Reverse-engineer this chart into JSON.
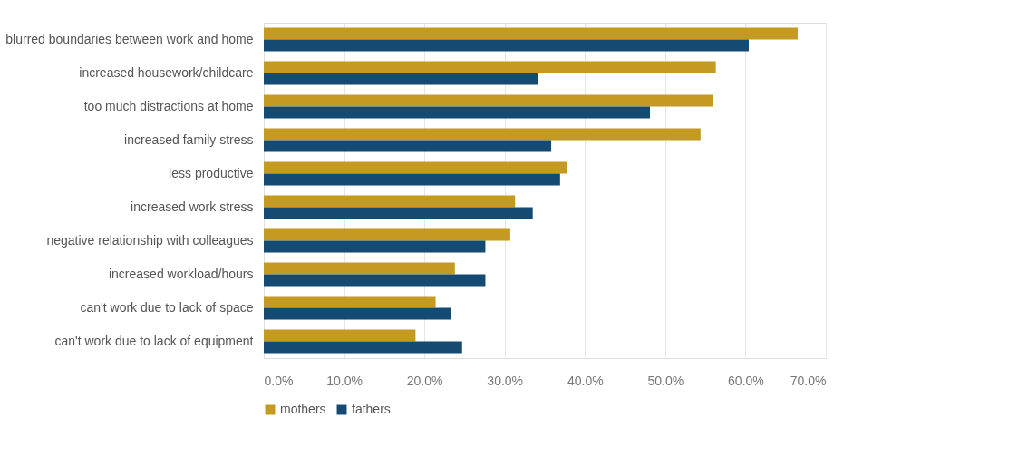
{
  "chart_data": {
    "type": "bar",
    "orientation": "horizontal",
    "categories": [
      "blurred boundaries between work and home",
      "increased housework/childcare",
      "too much distractions at home",
      "increased family stress",
      "less productive",
      "increased work stress",
      "negative relationship with colleagues",
      "increased workload/hours",
      "can't work due to lack of space",
      "can't work due to lack of equipment"
    ],
    "series": [
      {
        "name": "mothers",
        "color": "#c49a22",
        "values": [
          66.5,
          56.3,
          55.9,
          54.4,
          37.8,
          31.3,
          30.7,
          23.8,
          21.4,
          18.9
        ]
      },
      {
        "name": "fathers",
        "color": "#154a72",
        "values": [
          60.4,
          34.1,
          48.1,
          35.8,
          36.9,
          33.5,
          27.6,
          27.6,
          23.3,
          24.7
        ]
      }
    ],
    "xlim": [
      0,
      70
    ],
    "xticks": [
      {
        "value": 0,
        "label": "0.0%"
      },
      {
        "value": 10,
        "label": "10.0%"
      },
      {
        "value": 20,
        "label": "20.0%"
      },
      {
        "value": 30,
        "label": "30.0%"
      },
      {
        "value": 40,
        "label": "40.0%"
      },
      {
        "value": 50,
        "label": "50.0%"
      },
      {
        "value": 60,
        "label": "60.0%"
      },
      {
        "value": 70,
        "label": "70.0%"
      }
    ],
    "grid": "x",
    "legend": "bottom"
  }
}
